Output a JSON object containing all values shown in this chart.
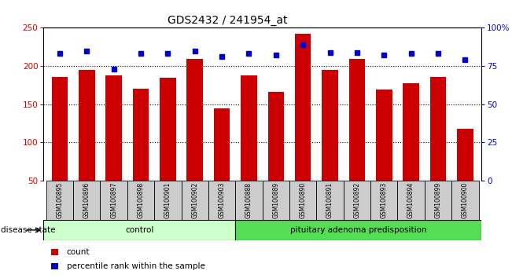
{
  "title": "GDS2432 / 241954_at",
  "samples": [
    "GSM100895",
    "GSM100896",
    "GSM100897",
    "GSM100898",
    "GSM100901",
    "GSM100902",
    "GSM100903",
    "GSM100888",
    "GSM100889",
    "GSM100890",
    "GSM100891",
    "GSM100892",
    "GSM100893",
    "GSM100894",
    "GSM100899",
    "GSM100900"
  ],
  "counts": [
    186,
    195,
    188,
    170,
    185,
    209,
    145,
    188,
    166,
    242,
    195,
    209,
    169,
    177,
    186,
    118
  ],
  "percentiles": [
    83,
    85,
    73,
    83,
    83,
    85,
    81,
    83,
    82,
    89,
    84,
    84,
    82,
    83,
    83,
    79
  ],
  "control_count": 7,
  "disease_count": 9,
  "ylim_left": [
    50,
    250
  ],
  "ylim_right": [
    0,
    100
  ],
  "yticks_left": [
    50,
    100,
    150,
    200,
    250
  ],
  "yticks_right": [
    0,
    25,
    50,
    75,
    100
  ],
  "ytick_labels_right": [
    "0",
    "25",
    "50",
    "75",
    "100%"
  ],
  "bar_color": "#cc0000",
  "dot_color": "#0000cc",
  "control_bg": "#ccffcc",
  "disease_bg": "#55dd55",
  "sample_bg": "#cccccc",
  "legend_bar_label": "count",
  "legend_dot_label": "percentile rank within the sample",
  "disease_state_label": "disease state",
  "control_label": "control",
  "disease_label": "pituitary adenoma predisposition",
  "title_fontsize": 10,
  "axis_fontsize": 7.5,
  "label_fontsize": 8
}
